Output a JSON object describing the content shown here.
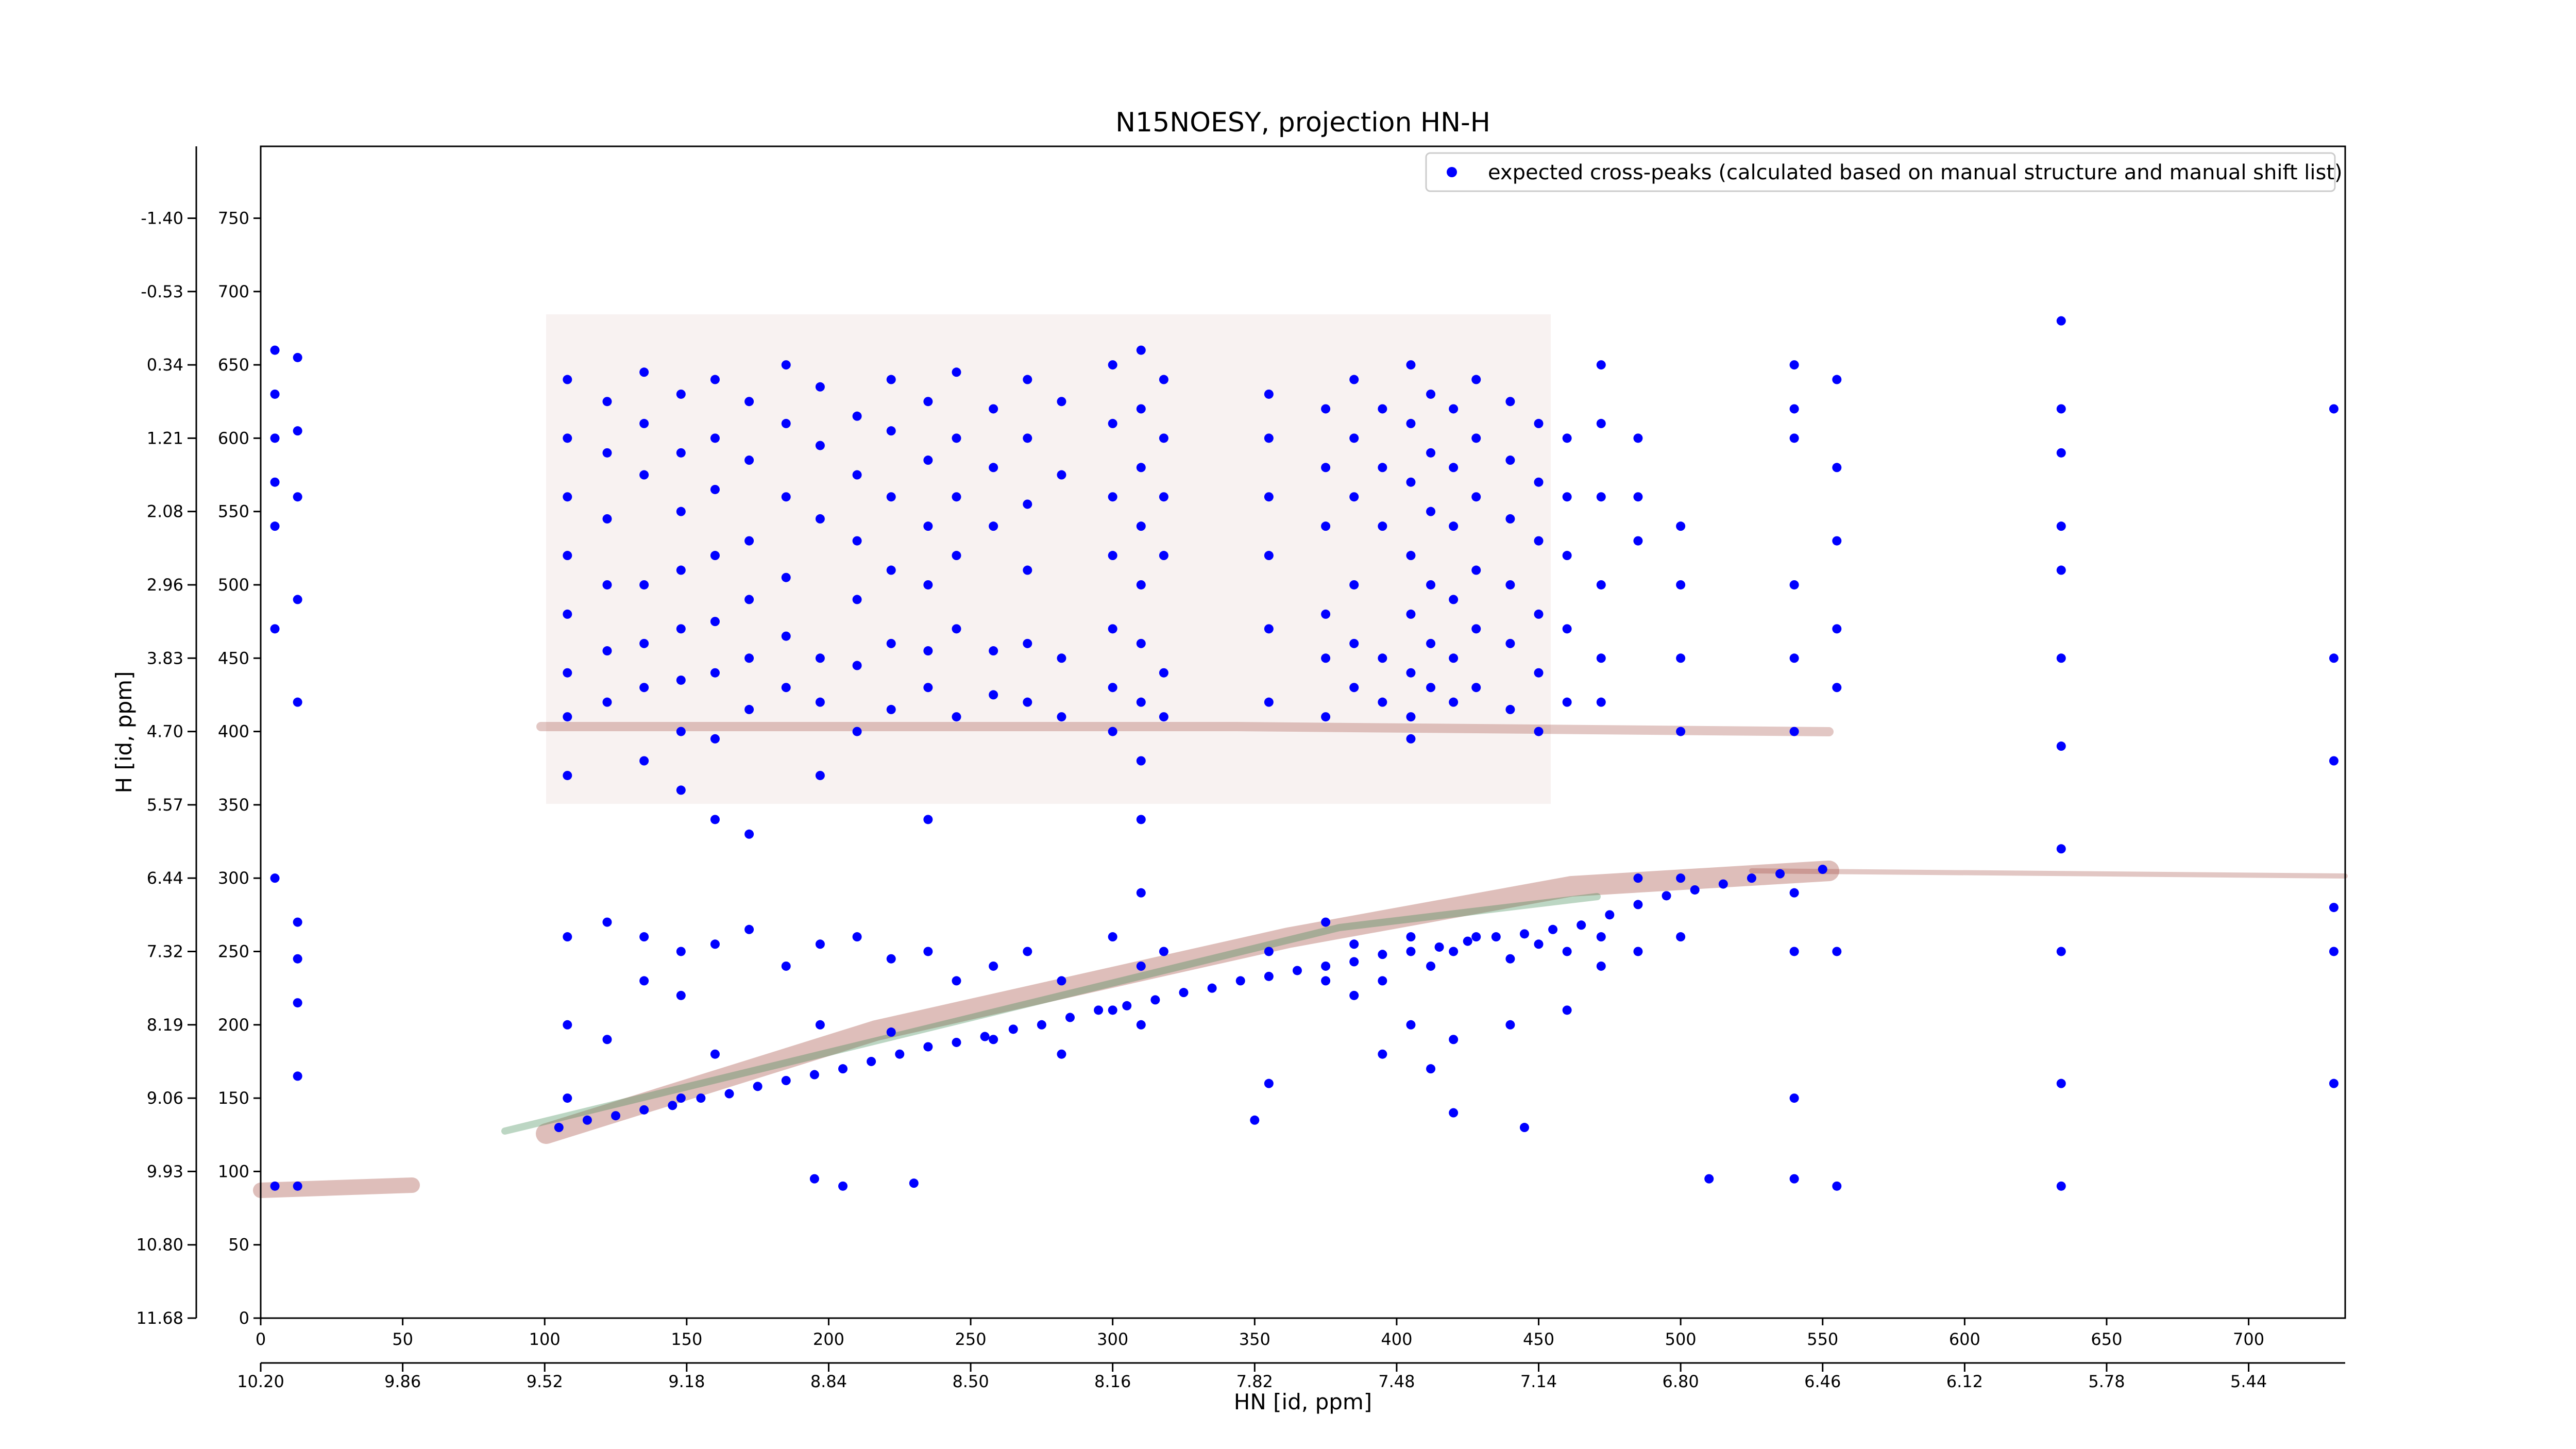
{
  "chart_data": {
    "type": "scatter",
    "title": "N15NOESY, projection HN-H",
    "xlabel": "HN [id, ppm]",
    "ylabel": "H [id, ppm]",
    "xlim": [
      0,
      734
    ],
    "ylim": [
      0,
      799
    ],
    "xticks": [
      0,
      50,
      100,
      150,
      200,
      250,
      300,
      350,
      400,
      450,
      500,
      550,
      600,
      650,
      700
    ],
    "yticks": [
      0,
      50,
      100,
      150,
      200,
      250,
      300,
      350,
      400,
      450,
      500,
      550,
      600,
      650,
      700,
      750
    ],
    "x2ticks": [
      {
        "value": 0,
        "label": "10.20"
      },
      {
        "value": 50,
        "label": "9.86"
      },
      {
        "value": 100,
        "label": "9.52"
      },
      {
        "value": 150,
        "label": "9.18"
      },
      {
        "value": 200,
        "label": "8.84"
      },
      {
        "value": 250,
        "label": "8.50"
      },
      {
        "value": 300,
        "label": "8.16"
      },
      {
        "value": 350,
        "label": "7.82"
      },
      {
        "value": 400,
        "label": "7.48"
      },
      {
        "value": 450,
        "label": "7.14"
      },
      {
        "value": 500,
        "label": "6.80"
      },
      {
        "value": 550,
        "label": "6.46"
      },
      {
        "value": 600,
        "label": "6.12"
      },
      {
        "value": 650,
        "label": "5.78"
      },
      {
        "value": 700,
        "label": "5.44"
      }
    ],
    "y2ticks": [
      {
        "value": 0,
        "label": "11.68"
      },
      {
        "value": 50,
        "label": "10.80"
      },
      {
        "value": 100,
        "label": "9.93"
      },
      {
        "value": 150,
        "label": "9.06"
      },
      {
        "value": 200,
        "label": "8.19"
      },
      {
        "value": 250,
        "label": "7.32"
      },
      {
        "value": 300,
        "label": "6.44"
      },
      {
        "value": 350,
        "label": "5.57"
      },
      {
        "value": 400,
        "label": "4.70"
      },
      {
        "value": 450,
        "label": "3.83"
      },
      {
        "value": 500,
        "label": "2.96"
      },
      {
        "value": 550,
        "label": "2.08"
      },
      {
        "value": 600,
        "label": "1.21"
      },
      {
        "value": 650,
        "label": "0.34"
      },
      {
        "value": 700,
        "label": "-0.53"
      },
      {
        "value": 750,
        "label": "-1.40"
      }
    ],
    "legend": "upper right",
    "series": [
      {
        "name": "expected cross-peaks (calculated based on manual structure and manual shift list)",
        "color": "#0000ff",
        "x": [
          105,
          115,
          125,
          135,
          145,
          155,
          165,
          175,
          185,
          195,
          205,
          215,
          225,
          235,
          245,
          255,
          265,
          275,
          285,
          295,
          305,
          315,
          325,
          335,
          345,
          355,
          365,
          375,
          385,
          395,
          405,
          415,
          425,
          435,
          445,
          455,
          465,
          475,
          485,
          495,
          505,
          515,
          525,
          535,
          550,
          5,
          5,
          5,
          5,
          5,
          5,
          5,
          5,
          13,
          13,
          13,
          13,
          13,
          13,
          13,
          13,
          13,
          13,
          108,
          108,
          108,
          108,
          108,
          108,
          108,
          108,
          108,
          108,
          108,
          122,
          122,
          122,
          122,
          122,
          122,
          122,
          122,
          135,
          135,
          135,
          135,
          135,
          135,
          135,
          135,
          135,
          148,
          148,
          148,
          148,
          148,
          148,
          148,
          148,
          148,
          148,
          148,
          160,
          160,
          160,
          160,
          160,
          160,
          160,
          160,
          160,
          160,
          172,
          172,
          172,
          172,
          172,
          172,
          172,
          172,
          185,
          185,
          185,
          185,
          185,
          185,
          185,
          197,
          197,
          197,
          197,
          197,
          197,
          197,
          197,
          210,
          210,
          210,
          210,
          210,
          210,
          210,
          222,
          222,
          222,
          222,
          222,
          222,
          222,
          222,
          235,
          235,
          235,
          235,
          235,
          235,
          235,
          235,
          245,
          245,
          245,
          245,
          245,
          245,
          245,
          258,
          258,
          258,
          258,
          258,
          258,
          258,
          270,
          270,
          270,
          270,
          270,
          270,
          270,
          282,
          282,
          282,
          282,
          282,
          282,
          300,
          300,
          300,
          300,
          300,
          300,
          300,
          300,
          300,
          310,
          310,
          310,
          310,
          310,
          310,
          310,
          310,
          310,
          310,
          310,
          310,
          318,
          318,
          318,
          318,
          318,
          318,
          318,
          355,
          355,
          355,
          355,
          355,
          355,
          355,
          355,
          375,
          375,
          375,
          375,
          375,
          375,
          375,
          375,
          385,
          385,
          385,
          385,
          385,
          385,
          385,
          385,
          395,
          395,
          395,
          395,
          395,
          395,
          395,
          405,
          405,
          405,
          405,
          405,
          405,
          405,
          405,
          405,
          405,
          412,
          412,
          412,
          412,
          412,
          412,
          412,
          412,
          420,
          420,
          420,
          420,
          420,
          420,
          420,
          420,
          428,
          428,
          428,
          428,
          428,
          428,
          428,
          440,
          440,
          440,
          440,
          440,
          440,
          440,
          440,
          450,
          450,
          450,
          450,
          450,
          450,
          450,
          460,
          460,
          460,
          460,
          460,
          460,
          460,
          472,
          472,
          472,
          472,
          472,
          472,
          472,
          472,
          485,
          485,
          485,
          485,
          485,
          500,
          500,
          500,
          500,
          500,
          500,
          540,
          540,
          540,
          540,
          540,
          540,
          540,
          540,
          540,
          555,
          555,
          555,
          555,
          555,
          555,
          555,
          634,
          634,
          634,
          634,
          634,
          634,
          634,
          634,
          634,
          634,
          634,
          730,
          730,
          730,
          730,
          730,
          730,
          195,
          205,
          230,
          350,
          420,
          445,
          510,
          540
        ],
        "values": [
          130,
          135,
          138,
          142,
          145,
          150,
          153,
          158,
          162,
          166,
          170,
          175,
          180,
          185,
          188,
          192,
          197,
          200,
          205,
          210,
          213,
          217,
          222,
          225,
          230,
          233,
          237,
          240,
          243,
          248,
          250,
          253,
          257,
          260,
          262,
          265,
          268,
          275,
          282,
          288,
          292,
          296,
          300,
          303,
          306,
          660,
          630,
          600,
          570,
          540,
          470,
          300,
          90,
          655,
          605,
          560,
          490,
          420,
          270,
          245,
          215,
          165,
          90,
          640,
          600,
          560,
          520,
          480,
          440,
          410,
          370,
          260,
          200,
          150,
          625,
          590,
          545,
          500,
          455,
          420,
          270,
          190,
          645,
          610,
          575,
          500,
          460,
          430,
          380,
          260,
          230,
          630,
          590,
          550,
          510,
          470,
          435,
          400,
          360,
          250,
          220,
          150,
          640,
          600,
          565,
          520,
          475,
          440,
          395,
          340,
          255,
          180,
          625,
          585,
          530,
          490,
          450,
          415,
          330,
          265,
          650,
          610,
          560,
          505,
          465,
          430,
          240,
          635,
          595,
          545,
          450,
          420,
          370,
          255,
          200,
          615,
          575,
          530,
          490,
          445,
          400,
          260,
          640,
          605,
          560,
          510,
          460,
          415,
          245,
          195,
          625,
          585,
          540,
          500,
          455,
          430,
          340,
          250,
          645,
          600,
          560,
          520,
          470,
          410,
          230,
          620,
          580,
          540,
          455,
          425,
          240,
          190,
          640,
          600,
          555,
          510,
          460,
          420,
          250,
          625,
          575,
          450,
          410,
          230,
          180,
          650,
          610,
          560,
          520,
          470,
          430,
          400,
          260,
          210,
          660,
          620,
          580,
          540,
          500,
          460,
          420,
          380,
          340,
          290,
          240,
          200,
          640,
          600,
          560,
          520,
          440,
          410,
          250,
          630,
          600,
          560,
          520,
          470,
          420,
          250,
          160,
          620,
          580,
          540,
          480,
          450,
          410,
          270,
          230,
          640,
          600,
          560,
          500,
          460,
          430,
          255,
          220,
          620,
          580,
          540,
          450,
          420,
          230,
          180,
          650,
          610,
          570,
          520,
          480,
          440,
          410,
          395,
          260,
          200,
          630,
          590,
          550,
          500,
          460,
          430,
          240,
          170,
          620,
          580,
          540,
          490,
          450,
          420,
          250,
          190,
          640,
          600,
          560,
          510,
          470,
          430,
          260,
          625,
          585,
          545,
          500,
          460,
          415,
          245,
          200,
          610,
          570,
          530,
          480,
          440,
          400,
          255,
          600,
          560,
          520,
          470,
          420,
          250,
          210,
          650,
          610,
          560,
          500,
          450,
          420,
          260,
          240,
          600,
          560,
          530,
          300,
          250,
          540,
          500,
          450,
          400,
          300,
          260,
          650,
          620,
          600,
          500,
          450,
          400,
          290,
          250,
          150,
          640,
          580,
          530,
          470,
          430,
          250,
          90,
          680,
          620,
          590,
          540,
          510,
          450,
          390,
          320,
          250,
          160,
          90,
          620,
          450,
          380,
          280,
          250,
          160,
          95,
          90,
          92,
          135,
          140,
          130,
          95,
          95
        ]
      }
    ]
  }
}
